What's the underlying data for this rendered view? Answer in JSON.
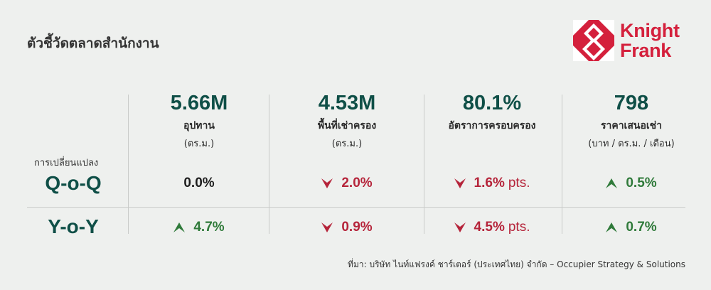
{
  "header": {
    "title": "ตัวชี้วัดตลาดสำนักงาน"
  },
  "logo": {
    "line1": "Knight",
    "line2": "Frank",
    "brand_color": "#d4203c"
  },
  "metrics": [
    {
      "value": "5.66M",
      "label": "อุปทาน",
      "unit": "(ตร.ม.)"
    },
    {
      "value": "4.53M",
      "label": "พื้นที่เช่าครอง",
      "unit": "(ตร.ม.)"
    },
    {
      "value": "80.1%",
      "label": "อัตราการครอบครอง",
      "unit": ""
    },
    {
      "value": "798",
      "label": "ราคาเสนอเช่า",
      "unit": "(บาท / ตร.ม. / เดือน)"
    }
  ],
  "change_label": "การเปลี่ยนแปลง",
  "rows": [
    {
      "label": "Q-o-Q",
      "cells": [
        {
          "value": "0.0%",
          "direction": "none",
          "suffix": ""
        },
        {
          "value": "2.0%",
          "direction": "down",
          "suffix": ""
        },
        {
          "value": "1.6%",
          "direction": "down",
          "suffix": "pts."
        },
        {
          "value": "0.5%",
          "direction": "up",
          "suffix": ""
        }
      ]
    },
    {
      "label": "Y-o-Y",
      "cells": [
        {
          "value": "4.7%",
          "direction": "up",
          "suffix": ""
        },
        {
          "value": "0.9%",
          "direction": "down",
          "suffix": ""
        },
        {
          "value": "4.5%",
          "direction": "down",
          "suffix": "pts."
        },
        {
          "value": "0.7%",
          "direction": "up",
          "suffix": ""
        }
      ]
    }
  ],
  "source": "ที่มา: บริษัท ไนท์แฟรงค์ ชาร์เตอร์ (ประเทศไทย) จำกัด – Occupier Strategy & Solutions",
  "colors": {
    "accent": "#0f4f47",
    "down": "#b5243a",
    "up": "#2f7a3a"
  }
}
